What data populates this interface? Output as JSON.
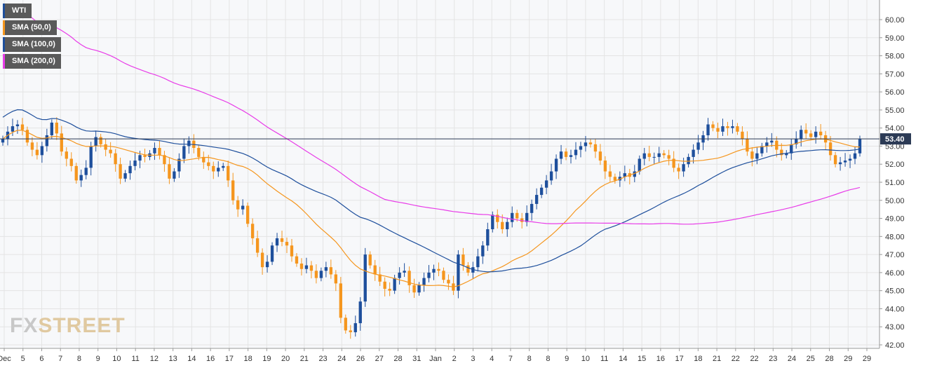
{
  "chart_data": {
    "type": "candlestick",
    "instrument": "WTI",
    "last_price": "53.40",
    "ylim": [
      42.0,
      60.5
    ],
    "y_ticks": [
      "60.00",
      "59.00",
      "58.00",
      "57.00",
      "56.00",
      "55.00",
      "54.00",
      "53.00",
      "52.00",
      "51.00",
      "50.00",
      "49.00",
      "48.00",
      "47.00",
      "46.00",
      "45.00",
      "44.00",
      "43.00",
      "42.00"
    ],
    "x_ticks": [
      "Dec",
      "5",
      "6",
      "7",
      "8",
      "9",
      "10",
      "11",
      "12",
      "13",
      "14",
      "16",
      "17",
      "18",
      "19",
      "20",
      "21",
      "23",
      "24",
      "26",
      "27",
      "28",
      "31",
      "Jan",
      "2",
      "3",
      "4",
      "7",
      "8",
      "8",
      "9",
      "10",
      "11",
      "14",
      "15",
      "16",
      "17",
      "18",
      "21",
      "22",
      "22",
      "23",
      "24",
      "25",
      "28",
      "29",
      "29"
    ],
    "grid": true,
    "legend_position": "top-left",
    "colors": {
      "up": "#1e4f9c",
      "down": "#f5961e",
      "sma50": "#f5961e",
      "sma100": "#1e4f9c",
      "sma200": "#e83ce8",
      "grid": "#e4e4e4",
      "price_line": "#2b3a55"
    },
    "series": [
      {
        "name": "WTI"
      },
      {
        "name": "SMA (50,0)"
      },
      {
        "name": "SMA (100,0)"
      },
      {
        "name": "SMA (200,0)"
      }
    ],
    "candles_close": [
      53.4,
      53.8,
      54.1,
      54.2,
      53.9,
      53.2,
      52.8,
      52.5,
      53.0,
      53.6,
      54.3,
      53.7,
      52.7,
      52.3,
      51.9,
      51.1,
      51.4,
      51.8,
      53.0,
      53.5,
      53.1,
      52.8,
      52.6,
      52.0,
      51.2,
      51.5,
      51.9,
      52.2,
      52.5,
      52.4,
      52.6,
      52.9,
      52.5,
      52.0,
      51.2,
      51.6,
      52.3,
      53.0,
      53.3,
      52.9,
      52.4,
      52.1,
      51.9,
      51.6,
      51.8,
      51.9,
      51.1,
      50.0,
      49.5,
      49.7,
      48.7,
      47.9,
      47.1,
      46.3,
      46.6,
      47.5,
      47.9,
      47.7,
      47.5,
      46.9,
      46.5,
      46.2,
      46.4,
      46.1,
      45.7,
      46.1,
      46.3,
      45.9,
      45.4,
      43.5,
      42.8,
      42.7,
      43.2,
      44.4,
      47.0,
      46.4,
      45.9,
      45.5,
      45.1,
      45.0,
      45.7,
      46.0,
      46.1,
      45.3,
      44.9,
      45.3,
      45.7,
      46.0,
      46.2,
      46.1,
      45.6,
      45.4,
      45.0,
      47.0,
      46.4,
      46.0,
      46.3,
      46.9,
      47.5,
      48.4,
      49.2,
      48.8,
      48.4,
      48.8,
      49.3,
      49.0,
      48.8,
      49.3,
      49.8,
      50.3,
      50.7,
      51.1,
      51.6,
      52.3,
      52.7,
      52.4,
      52.5,
      52.8,
      53.0,
      53.2,
      53.1,
      52.7,
      52.2,
      51.6,
      51.3,
      51.1,
      51.3,
      51.5,
      51.3,
      51.6,
      52.3,
      52.6,
      52.4,
      52.4,
      52.6,
      52.5,
      52.3,
      51.8,
      51.6,
      52.0,
      52.4,
      52.8,
      53.2,
      53.6,
      54.2,
      54.0,
      53.8,
      54.1,
      54.0,
      54.1,
      53.8,
      53.4,
      52.7,
      52.3,
      52.6,
      53.0,
      53.2,
      53.3,
      52.8,
      52.5,
      52.6,
      53.1,
      53.4,
      53.9,
      53.7,
      53.5,
      53.8,
      53.6,
      53.2,
      52.5,
      52.0,
      52.1,
      52.2,
      52.3,
      52.6,
      53.4
    ]
  }
}
